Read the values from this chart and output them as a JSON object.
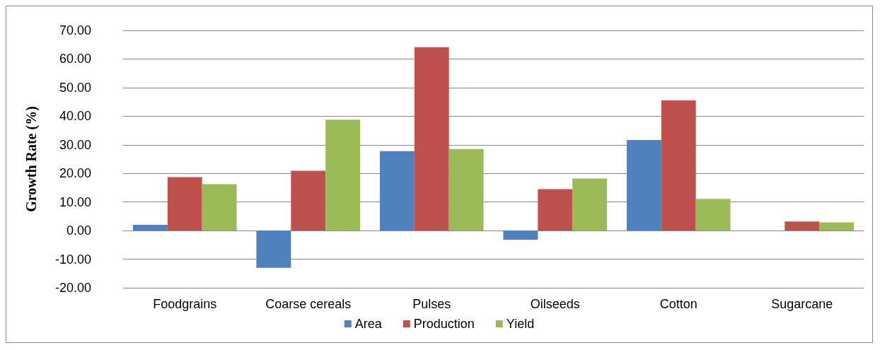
{
  "chart_data": {
    "type": "bar",
    "ylabel": "Growth Rate (%)",
    "categories": [
      "Foodgrains",
      "Coarse cereals",
      "Pulses",
      "Oilseeds",
      "Cotton",
      "Sugarcane"
    ],
    "series": [
      {
        "name": "Area",
        "color": "#4f81bd",
        "values": [
          2.0,
          -13.0,
          27.8,
          -3.2,
          31.7,
          0
        ]
      },
      {
        "name": "Production",
        "color": "#c0504d",
        "values": [
          18.7,
          20.9,
          64.1,
          14.5,
          45.5,
          3.2
        ]
      },
      {
        "name": "Yield",
        "color": "#9bbb59",
        "values": [
          16.2,
          38.8,
          28.5,
          18.2,
          11.1,
          2.9
        ]
      }
    ],
    "ylim": [
      -20,
      70
    ],
    "yticks": [
      {
        "value": -20,
        "label": "-20.00"
      },
      {
        "value": -10,
        "label": "-10.00"
      },
      {
        "value": 0,
        "label": "0.00"
      },
      {
        "value": 10,
        "label": "10.00"
      },
      {
        "value": 20,
        "label": "20.00"
      },
      {
        "value": 30,
        "label": "30.00"
      },
      {
        "value": 40,
        "label": "40.00"
      },
      {
        "value": 50,
        "label": "50.00"
      },
      {
        "value": 60,
        "label": "60.00"
      },
      {
        "value": 70,
        "label": "70.00"
      }
    ],
    "grid": "y",
    "legend": "bottom"
  }
}
